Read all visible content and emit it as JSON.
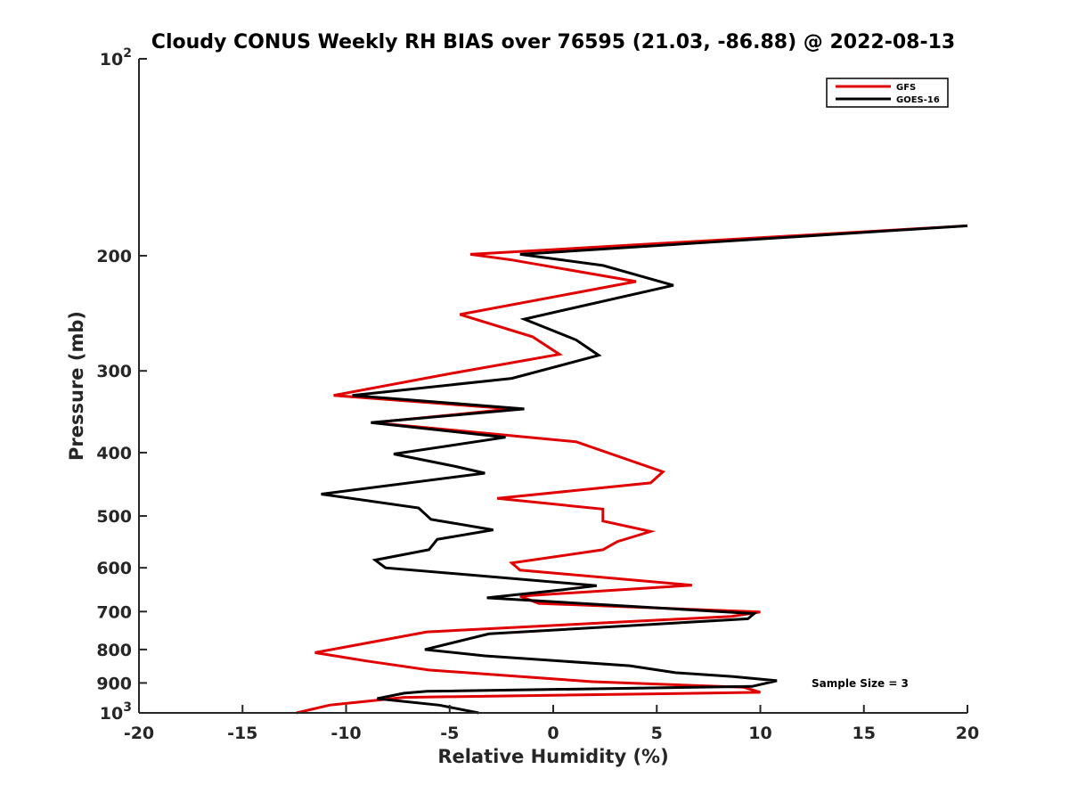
{
  "chart_data": {
    "type": "line",
    "title": "Cloudy CONUS Weekly RH BIAS over 76595 (21.03, -86.88) @ 2022-08-13",
    "xlabel": "Relative Humidity (%)",
    "ylabel": "Pressure (mb)",
    "xlim": [
      -20,
      20
    ],
    "ylim": [
      100,
      1000
    ],
    "yscale": "log",
    "y_reversed": true,
    "x_ticks": [
      "-20",
      "-15",
      "-10",
      "-5",
      "0",
      "5",
      "10",
      "15",
      "20"
    ],
    "x_tick_values": [
      -20,
      -15,
      -10,
      -5,
      0,
      5,
      10,
      15,
      20
    ],
    "y_ticks": [
      {
        "value": 100,
        "base": "10",
        "exp": "2"
      },
      {
        "value": 200,
        "label": "200"
      },
      {
        "value": 300,
        "label": "300"
      },
      {
        "value": 400,
        "label": "400"
      },
      {
        "value": 500,
        "label": "500"
      },
      {
        "value": 600,
        "label": "600"
      },
      {
        "value": 700,
        "label": "700"
      },
      {
        "value": 800,
        "label": "800"
      },
      {
        "value": 900,
        "label": "900"
      },
      {
        "value": 1000,
        "base": "10",
        "exp": "3"
      }
    ],
    "legend_position": "top-right",
    "annotation": "Sample Size = 3",
    "series": [
      {
        "name": "GFS",
        "color": "#e00000",
        "points": [
          [
            20,
            180
          ],
          [
            -4,
            199
          ],
          [
            -2,
            203
          ],
          [
            4,
            219
          ],
          [
            -4.5,
            246
          ],
          [
            -1,
            266
          ],
          [
            0.3,
            283
          ],
          [
            -5,
            303
          ],
          [
            -10.6,
            327
          ],
          [
            -2,
            343
          ],
          [
            -8.7,
            360
          ],
          [
            1.1,
            385
          ],
          [
            5.3,
            428
          ],
          [
            4.7,
            445
          ],
          [
            -2.7,
            470
          ],
          [
            2.4,
            488
          ],
          [
            2.4,
            509
          ],
          [
            4.7,
            528
          ],
          [
            3.1,
            547
          ],
          [
            2.4,
            563
          ],
          [
            -2,
            590
          ],
          [
            -1.6,
            605
          ],
          [
            6.7,
            638
          ],
          [
            -1.6,
            663
          ],
          [
            -0.7,
            680
          ],
          [
            10,
            701
          ],
          [
            8.6,
            712
          ],
          [
            -6.1,
            752
          ],
          [
            -11.5,
            809
          ],
          [
            -9,
            833
          ],
          [
            -6,
            860
          ],
          [
            1.9,
            896
          ],
          [
            9.2,
            914
          ],
          [
            10,
            930
          ],
          [
            -7.2,
            947
          ],
          [
            -10.8,
            973
          ],
          [
            -12.4,
            1000
          ]
        ]
      },
      {
        "name": "GOES-16",
        "color": "#000000",
        "points": [
          [
            20,
            180
          ],
          [
            -1.6,
            199
          ],
          [
            2.4,
            207
          ],
          [
            5.8,
            222
          ],
          [
            -1.4,
            250
          ],
          [
            1.1,
            269
          ],
          [
            2.2,
            284
          ],
          [
            -2,
            308
          ],
          [
            -9.7,
            327
          ],
          [
            -1.4,
            343
          ],
          [
            -8.8,
            360
          ],
          [
            -2.3,
            379
          ],
          [
            -7.7,
            402
          ],
          [
            -4.7,
            420
          ],
          [
            -3.3,
            430
          ],
          [
            -11.2,
            463
          ],
          [
            -6.5,
            486
          ],
          [
            -5.9,
            506
          ],
          [
            -2.9,
            525
          ],
          [
            -5.6,
            543
          ],
          [
            -6,
            563
          ],
          [
            -8.6,
            584
          ],
          [
            -8.1,
            600
          ],
          [
            2.1,
            639
          ],
          [
            0.5,
            648
          ],
          [
            -3.2,
            667
          ],
          [
            9.7,
            705
          ],
          [
            9.4,
            718
          ],
          [
            -3.1,
            757
          ],
          [
            -6.2,
            800
          ],
          [
            -3.3,
            818
          ],
          [
            3.7,
            847
          ],
          [
            5.9,
            868
          ],
          [
            8.7,
            880
          ],
          [
            10.8,
            893
          ],
          [
            9.6,
            911
          ],
          [
            -6.1,
            927
          ],
          [
            -7.2,
            933
          ],
          [
            -8.5,
            951
          ],
          [
            -5.5,
            973
          ],
          [
            -3.6,
            1000
          ]
        ]
      }
    ]
  }
}
